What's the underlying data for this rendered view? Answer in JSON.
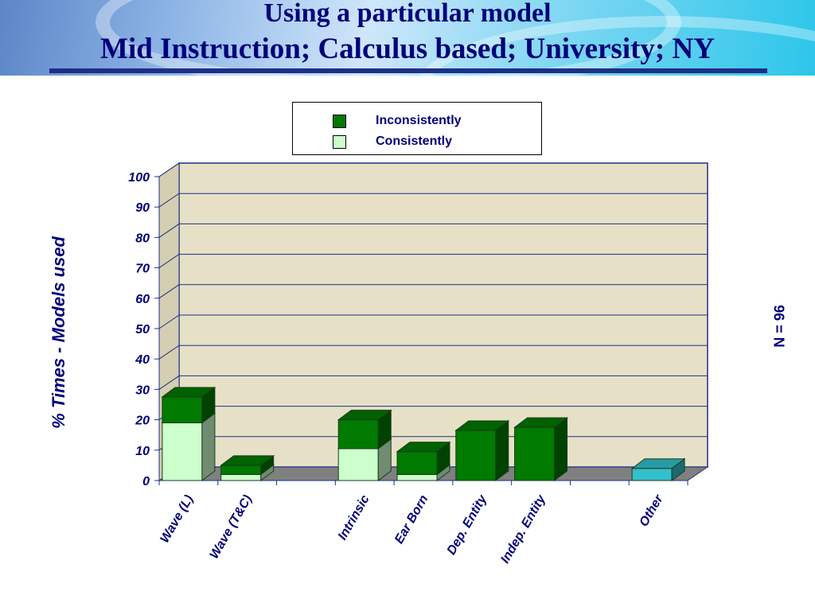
{
  "slide": {
    "title_line1": "Using a particular model",
    "title_line2": "Mid Instruction; Calculus based; University; NY",
    "note": "N = 96"
  },
  "colors": {
    "inconsistently": "#007a00",
    "consistently": "#ccffcc",
    "other": "#33c0cc",
    "plot_wall": "#e6e1c6",
    "floor": "#808080"
  },
  "chart_data": {
    "type": "bar",
    "stacked": true,
    "title": "",
    "xlabel": "",
    "ylabel": "% Times - Models used",
    "ylim": [
      0,
      100
    ],
    "yticks": [
      0,
      10,
      20,
      30,
      40,
      50,
      60,
      70,
      80,
      90,
      100
    ],
    "grid": true,
    "legend": "top",
    "legend_entries": [
      "Inconsistently",
      "Consistently"
    ],
    "categories": [
      "Wave (L)",
      "Wave (T&C)",
      "",
      "Intrinsic",
      "Ear Born",
      "Dep. Entity",
      "Indep. Entity",
      "",
      "Other"
    ],
    "series": [
      {
        "name": "Consistently",
        "values": [
          19,
          2,
          0,
          10.5,
          2,
          0,
          0,
          0,
          0
        ]
      },
      {
        "name": "Inconsistently",
        "values": [
          8.5,
          3,
          0,
          9.5,
          7.5,
          16.5,
          17.5,
          0,
          0
        ]
      }
    ],
    "other_values": [
      0,
      0,
      0,
      0,
      0,
      0,
      0,
      0,
      4
    ]
  }
}
